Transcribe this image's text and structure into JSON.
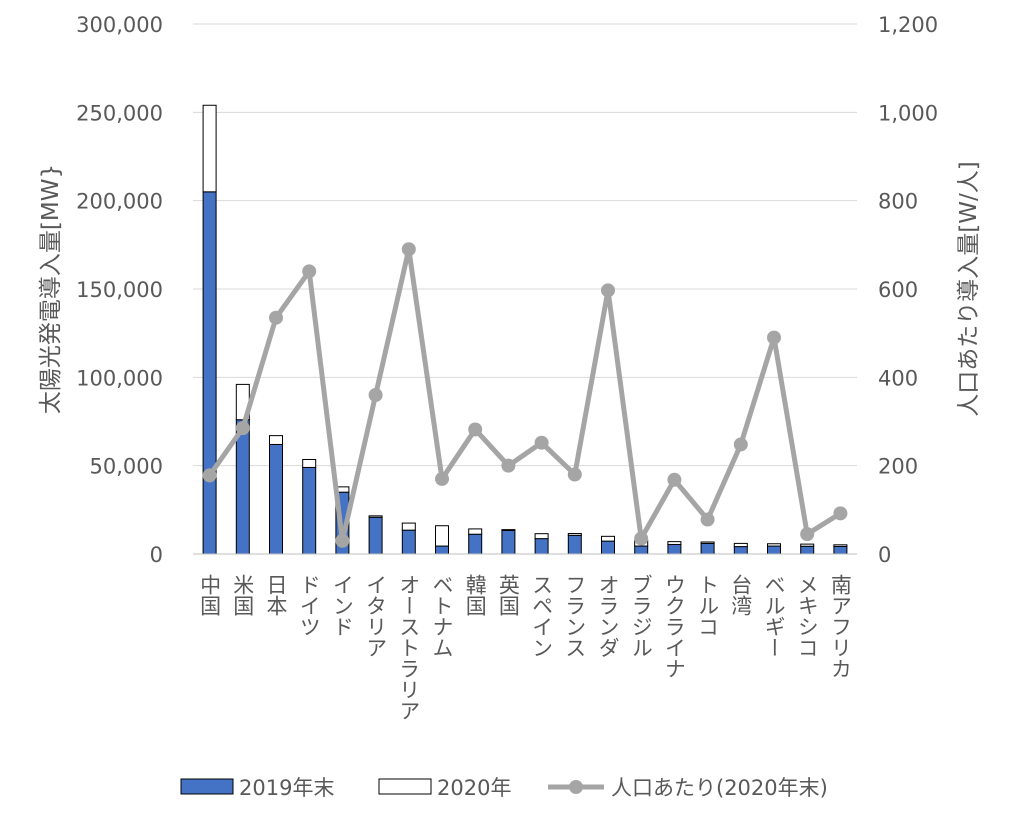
{
  "chart_data": {
    "type": "bar",
    "title": "",
    "categories": [
      "中国",
      "米国",
      "日本",
      "ドイツ",
      "インド",
      "イタリア",
      "オーストラリア",
      "ベトナム",
      "韓国",
      "英国",
      "スペイン",
      "フランス",
      "オランダ",
      "ブラジル",
      "ウクライナ",
      "トルコ",
      "台湾",
      "ベルギー",
      "メキシコ",
      "南アフリカ"
    ],
    "series": [
      {
        "name": "2019年末",
        "type": "bar",
        "stack": "pv",
        "color": "#4472C4",
        "values": [
          205000,
          76000,
          62000,
          49000,
          35000,
          20800,
          13500,
          4500,
          11200,
          13300,
          8700,
          10600,
          7300,
          4500,
          5400,
          6000,
          4200,
          4500,
          4400,
          4300
        ]
      },
      {
        "name": "2020年",
        "type": "bar",
        "stack": "pv",
        "color": "#FFFFFF",
        "values": [
          49000,
          20000,
          5000,
          4500,
          3000,
          800,
          4000,
          11500,
          3000,
          500,
          2800,
          1000,
          2700,
          3200,
          1600,
          800,
          1800,
          1300,
          1200,
          900
        ]
      },
      {
        "name": "人口あたり(2020年末)",
        "type": "line",
        "axis": "right",
        "color": "#A5A5A5",
        "values": [
          178,
          285,
          535,
          640,
          30,
          360,
          690,
          170,
          282,
          200,
          252,
          180,
          597,
          35,
          168,
          78,
          248,
          490,
          45,
          92
        ]
      }
    ],
    "ylabel": "太陽光発電導入量[MW}",
    "ylim": [
      0,
      300000
    ],
    "yticks": [
      "0",
      "50,000",
      "100,000",
      "150,000",
      "200,000",
      "250,000",
      "300,000"
    ],
    "y2label": "人口あたり導入量[W/人]",
    "y2lim": [
      0,
      1200
    ],
    "y2ticks": [
      "0",
      "200",
      "400",
      "600",
      "800",
      "1,000",
      "1,200"
    ],
    "grid": true,
    "legend": "bottom"
  }
}
